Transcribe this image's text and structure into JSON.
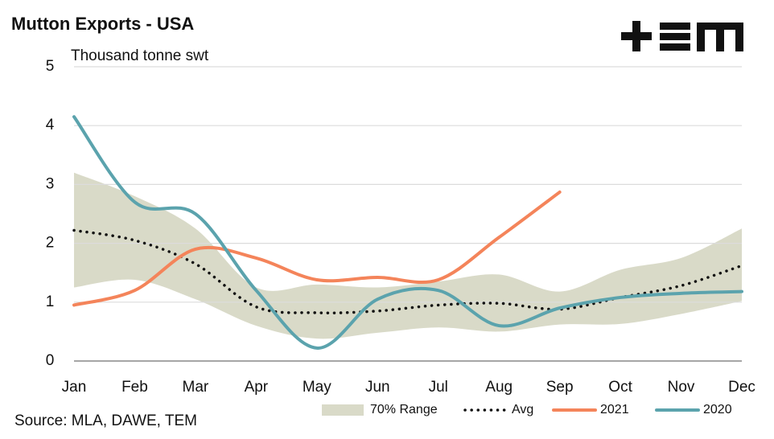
{
  "chart_data": {
    "type": "line",
    "title": "Mutton Exports - USA",
    "subtitle": "Thousand tonne swt",
    "source": "Source: MLA, DAWE, TEM",
    "categories": [
      "Jan",
      "Feb",
      "Mar",
      "Apr",
      "May",
      "Jun",
      "Jul",
      "Aug",
      "Sep",
      "Oct",
      "Nov",
      "Dec"
    ],
    "ylim": [
      0,
      5
    ],
    "yticks": [
      0,
      1,
      2,
      3,
      4,
      5
    ],
    "grid": true,
    "legend": "bottom",
    "range": {
      "name": "70% Range",
      "color": "#d9dac8",
      "upper": [
        3.2,
        2.8,
        2.25,
        1.25,
        1.3,
        1.25,
        1.35,
        1.47,
        1.18,
        1.55,
        1.75,
        2.25
      ],
      "lower": [
        1.25,
        1.38,
        1.05,
        0.6,
        0.38,
        0.48,
        0.57,
        0.5,
        0.62,
        0.63,
        0.8,
        1.02
      ]
    },
    "series": [
      {
        "name": "Avg",
        "color": "#111111",
        "dash": true,
        "values": [
          2.22,
          2.05,
          1.65,
          0.92,
          0.82,
          0.85,
          0.95,
          0.98,
          0.88,
          1.08,
          1.28,
          1.62
        ]
      },
      {
        "name": "2021",
        "color": "#f4845a",
        "values": [
          0.95,
          1.2,
          1.9,
          1.75,
          1.38,
          1.42,
          1.38,
          2.1,
          2.87,
          null,
          null,
          null
        ]
      },
      {
        "name": "2020",
        "color": "#5ba3ad",
        "values": [
          4.15,
          2.7,
          2.5,
          1.2,
          0.22,
          1.05,
          1.2,
          0.6,
          0.9,
          1.08,
          1.15,
          1.18
        ]
      }
    ]
  }
}
